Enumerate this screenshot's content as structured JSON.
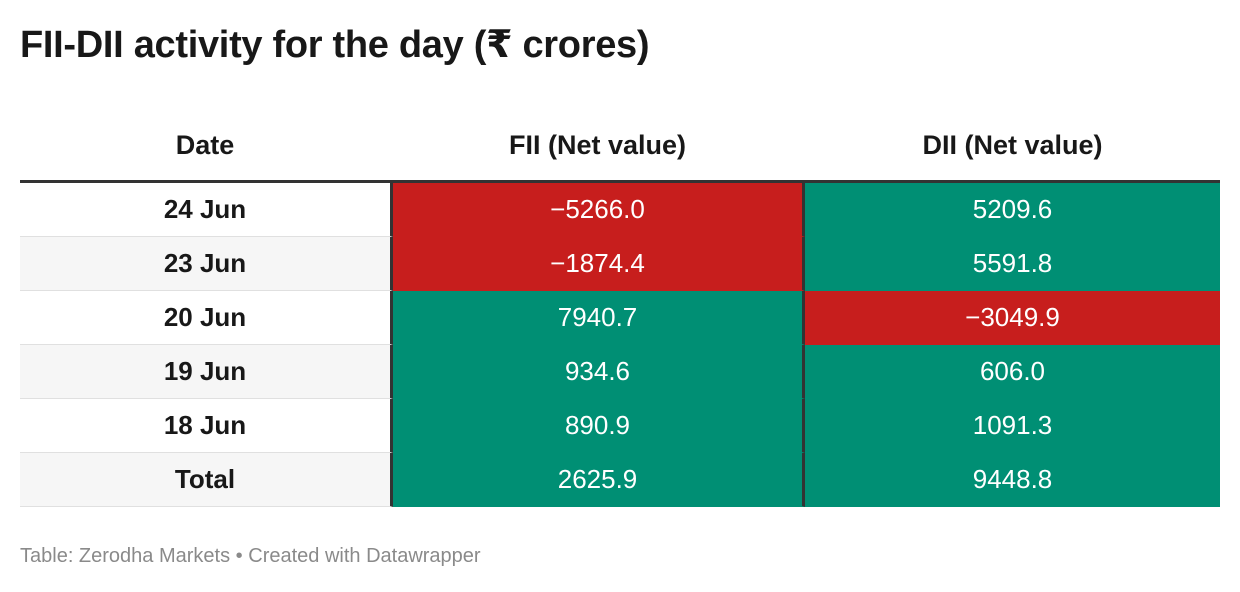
{
  "title": "FII-DII activity for the day (₹ crores)",
  "footer": {
    "source_label": "Table: Zerodha Markets",
    "separator": "•",
    "created_with": "Created with Datawrapper"
  },
  "colors": {
    "positive": "#008f74",
    "negative": "#c71e1d",
    "header_rule": "#333333"
  },
  "chart_data": {
    "type": "table",
    "title": "FII-DII activity for the day (₹ crores)",
    "columns": [
      "Date",
      "FII (Net value)",
      "DII (Net value)"
    ],
    "rows": [
      {
        "date": "24 Jun",
        "fii": "−5266.0",
        "dii": "5209.6",
        "fii_value": -5266.0,
        "dii_value": 5209.6
      },
      {
        "date": "23 Jun",
        "fii": "−1874.4",
        "dii": "5591.8",
        "fii_value": -1874.4,
        "dii_value": 5591.8
      },
      {
        "date": "20 Jun",
        "fii": "7940.7",
        "dii": "−3049.9",
        "fii_value": 7940.7,
        "dii_value": -3049.9
      },
      {
        "date": "19 Jun",
        "fii": "934.6",
        "dii": "606.0",
        "fii_value": 934.6,
        "dii_value": 606.0
      },
      {
        "date": "18 Jun",
        "fii": "890.9",
        "dii": "1091.3",
        "fii_value": 890.9,
        "dii_value": 1091.3
      },
      {
        "date": "Total",
        "fii": "2625.9",
        "dii": "9448.8",
        "fii_value": 2625.9,
        "dii_value": 9448.8
      }
    ]
  }
}
